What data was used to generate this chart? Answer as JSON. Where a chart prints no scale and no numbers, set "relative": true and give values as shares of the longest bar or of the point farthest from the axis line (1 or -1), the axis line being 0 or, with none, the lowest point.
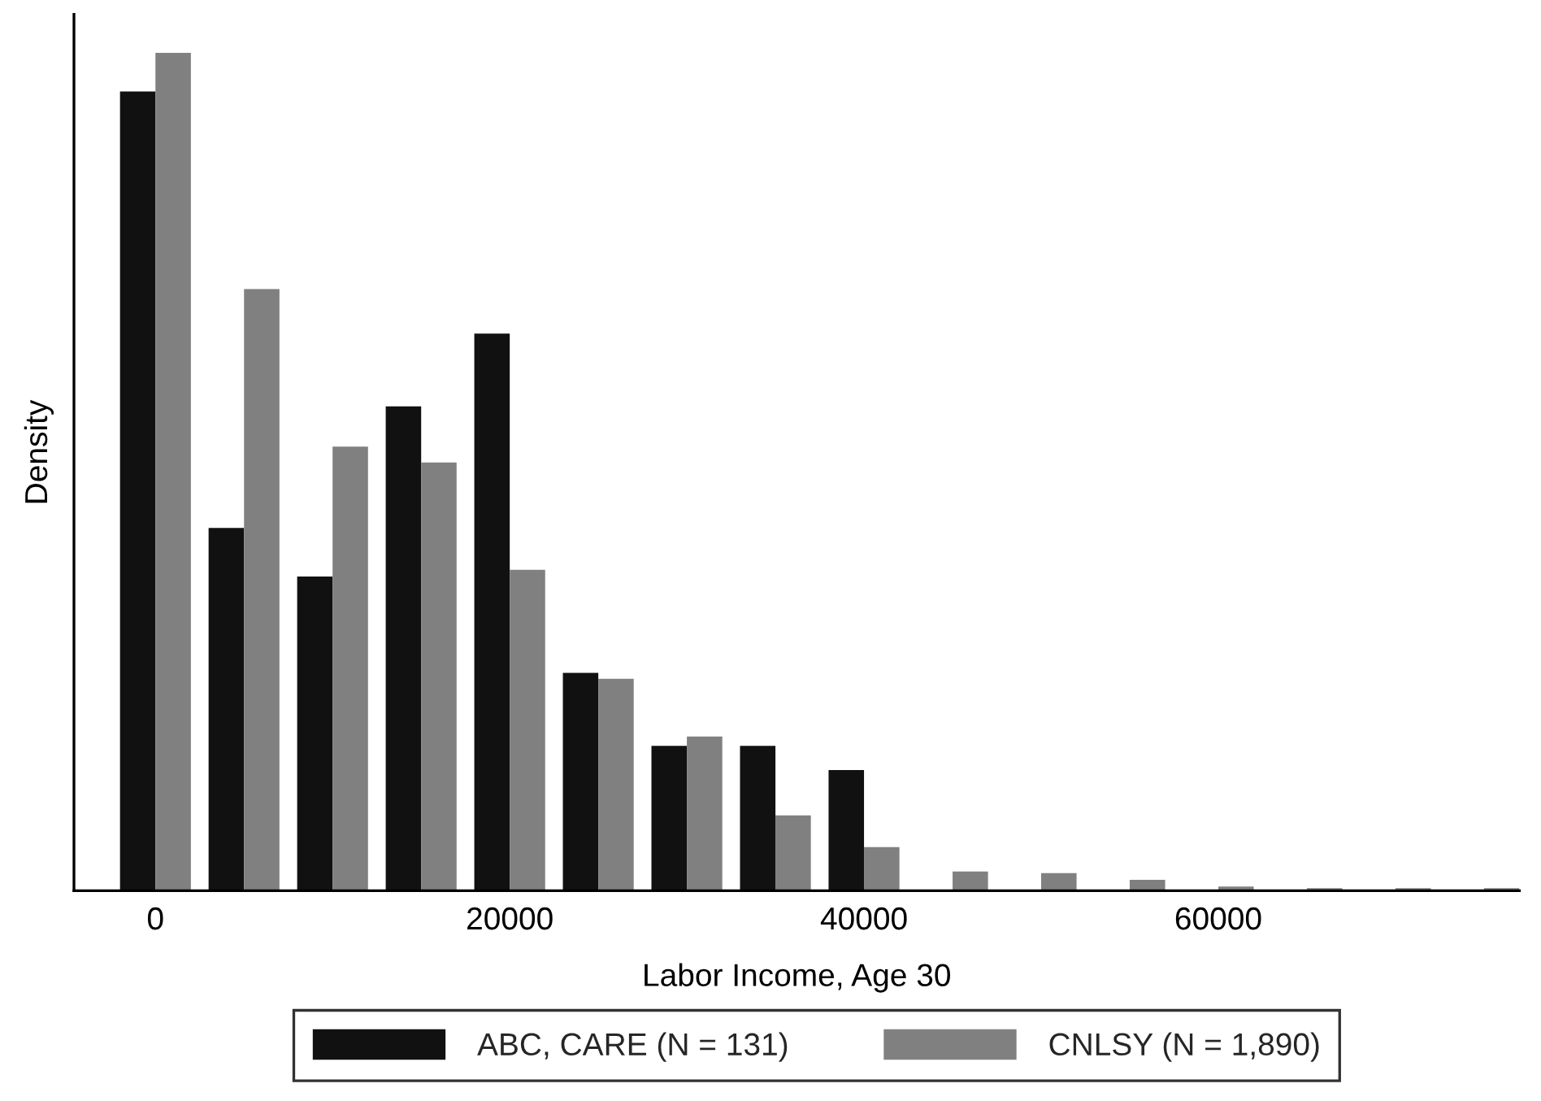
{
  "chart_data": {
    "type": "bar",
    "xlabel": "Labor Income, Age 30",
    "ylabel": "Density",
    "categories": [
      "0",
      null,
      null,
      null,
      "20000",
      null,
      null,
      null,
      "40000",
      null,
      null,
      null,
      "60000",
      null,
      null,
      null
    ],
    "series": [
      {
        "name": "ABC, CARE (N = 131)",
        "color": "#111111",
        "values": [
          0.954,
          0.433,
          0.375,
          0.578,
          0.665,
          0.26,
          0.173,
          0.173,
          0.144,
          null,
          null,
          null,
          null,
          null,
          null,
          null
        ]
      },
      {
        "name": "CNLSY (N = 1,890)",
        "color": "#808080",
        "values": [
          1,
          0.718,
          0.53,
          0.511,
          0.383,
          0.253,
          0.184,
          0.09,
          0.052,
          0.023,
          0.021,
          0.013,
          0.005,
          0.003,
          0.003,
          0.003
        ]
      }
    ],
    "relative": true,
    "legend": "bottom",
    "grid": false
  }
}
